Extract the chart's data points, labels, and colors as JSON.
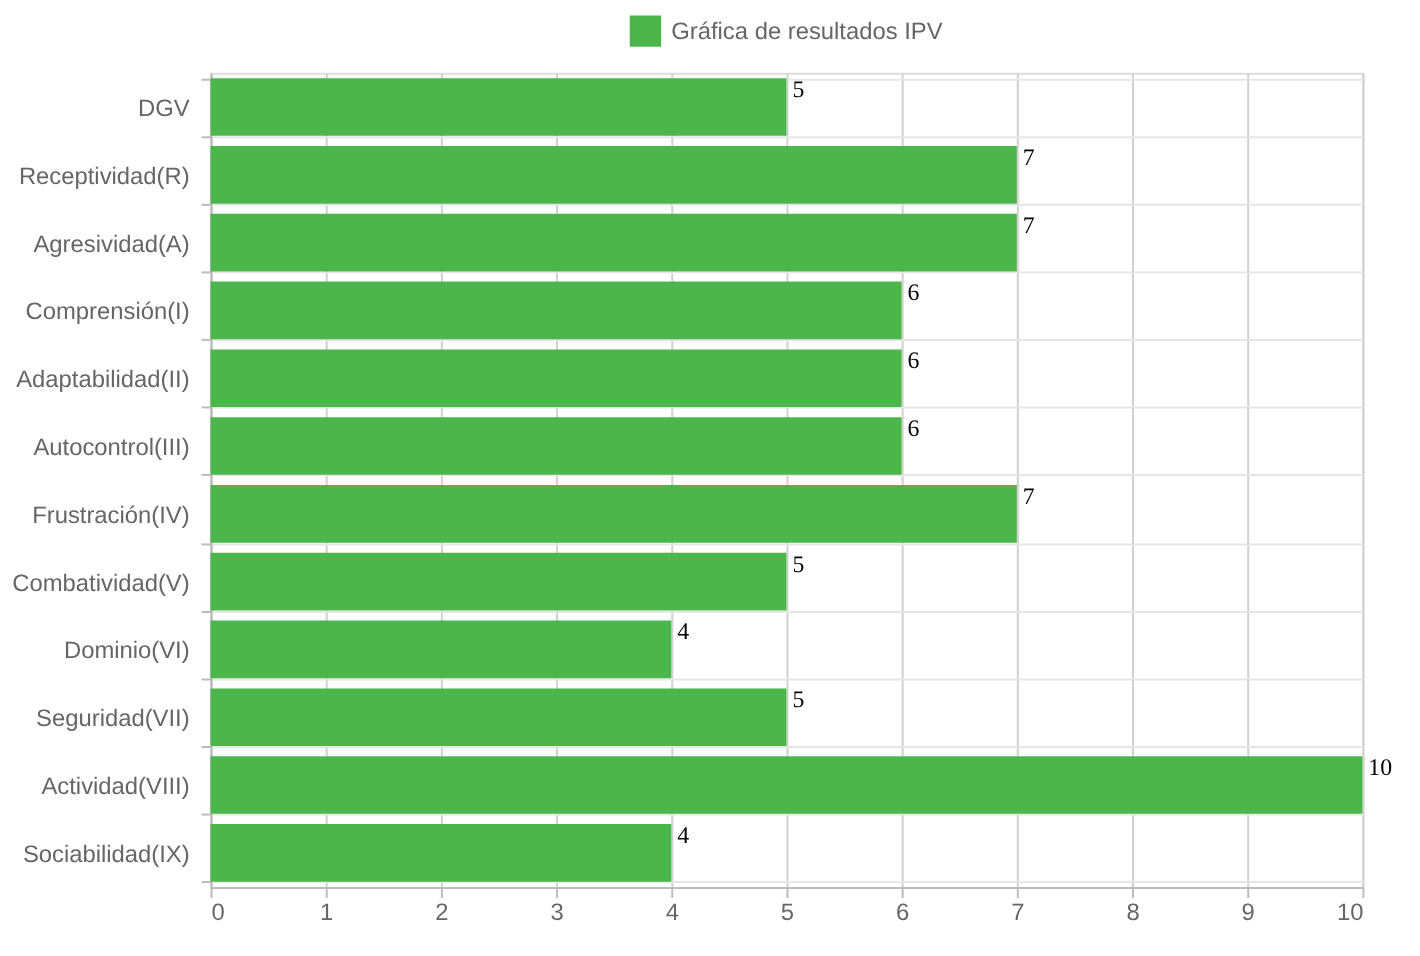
{
  "chart_data": {
    "type": "bar",
    "orientation": "horizontal",
    "categories": [
      "DGV",
      "Receptividad(R)",
      "Agresividad(A)",
      "Comprensión(I)",
      "Adaptabilidad(II)",
      "Autocontrol(III)",
      "Frustración(IV)",
      "Combatividad(V)",
      "Dominio(VI)",
      "Seguridad(VII)",
      "Actividad(VIII)",
      "Sociabilidad(IX)"
    ],
    "series": [
      {
        "name": "Gráfica de resultados IPV",
        "color": "#4cb54c",
        "values": [
          5,
          7,
          7,
          6,
          6,
          6,
          7,
          5,
          4,
          5,
          10,
          4
        ]
      }
    ],
    "xlim": [
      0,
      10
    ],
    "xticks": [
      0,
      1,
      2,
      3,
      4,
      5,
      6,
      7,
      8,
      9,
      10
    ],
    "grid": true,
    "legend": "top",
    "data_labels": true
  }
}
